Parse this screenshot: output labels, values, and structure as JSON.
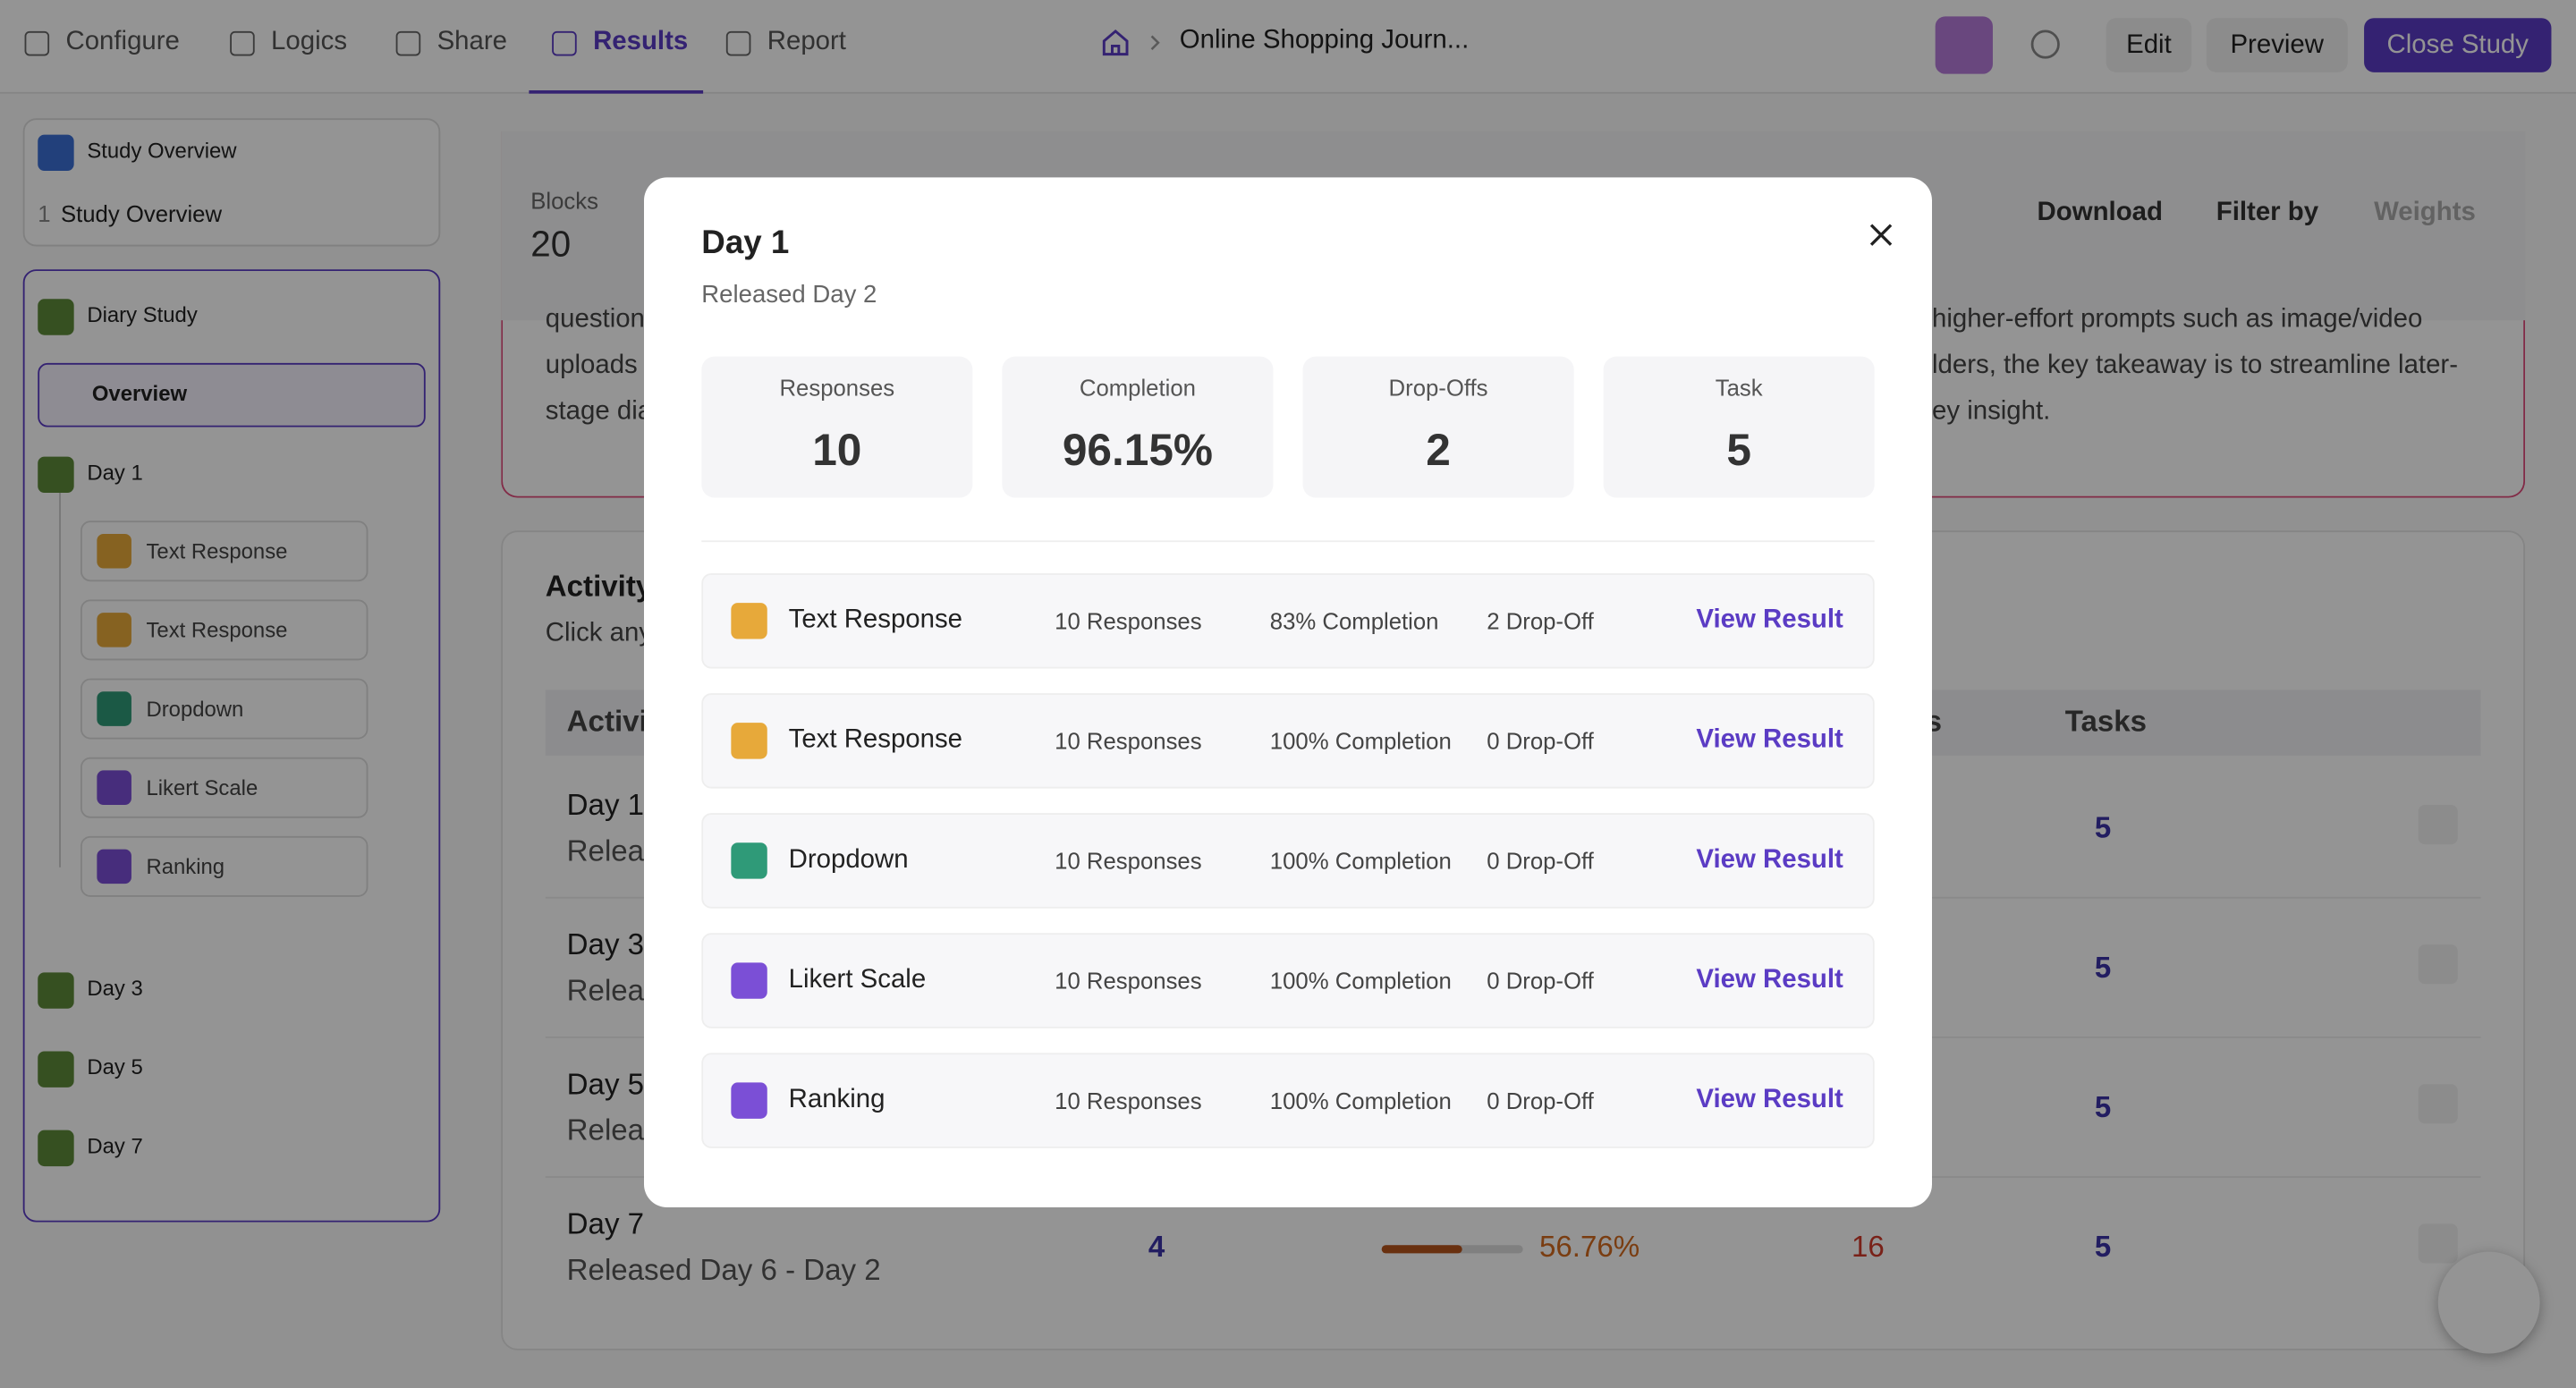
{
  "nav": {
    "tabs": [
      "Configure",
      "Logics",
      "Share",
      "Results",
      "Report"
    ],
    "breadcrumb": "Online Shopping Journ...",
    "buttons": [
      "Edit",
      "Preview",
      "Close Study"
    ]
  },
  "sidebar": {
    "overview": {
      "title": "Study Overview",
      "number": "1",
      "item": "Study Overview"
    },
    "diary": {
      "title": "Diary Study",
      "overview": "Overview",
      "day": "Day 1",
      "children": [
        "Text Response",
        "Text Response",
        "Dropdown",
        "Likert Scale",
        "Ranking"
      ],
      "other_days": [
        "Day 3",
        "Day 5",
        "Day 7"
      ]
    }
  },
  "summary": {
    "blocks_label": "Blocks",
    "blocks_value": "20",
    "buttons": [
      "Download",
      "Filter by",
      "Weights"
    ],
    "text_left": [
      "question",
      "uploads",
      "stage dia"
    ],
    "text_right": [
      "higher-effort prompts such as image/video",
      "lders, the key takeaway is to streamline later-",
      "ey insight."
    ]
  },
  "activity": {
    "title": "Activity",
    "subtitle": "Click any",
    "headers": [
      "Activi",
      "s",
      "Tasks"
    ],
    "rows": [
      {
        "name": "Day 1",
        "sub": "Relea",
        "tasks": "5"
      },
      {
        "name": "Day 3",
        "sub": "Relea",
        "tasks": "5"
      },
      {
        "name": "Day 5",
        "sub": "Relea",
        "tasks": "5"
      },
      {
        "name": "Day 7",
        "sub": "Released Day 6 - Day 2",
        "count": "4",
        "completion": "56.76%",
        "dropoffs": "16",
        "tasks": "5"
      }
    ]
  },
  "modal": {
    "title": "Day 1",
    "subtitle": "Released Day 2",
    "stats": [
      {
        "label": "Responses",
        "value": "10"
      },
      {
        "label": "Completion",
        "value": "96.15%"
      },
      {
        "label": "Drop-Offs",
        "value": "2"
      },
      {
        "label": "Task",
        "value": "5"
      }
    ],
    "items": [
      {
        "name": "Text Response",
        "responses": "10 Responses",
        "completion": "83% Completion",
        "dropoff": "2 Drop-Off",
        "action": "View Result"
      },
      {
        "name": "Text Response",
        "responses": "10 Responses",
        "completion": "100% Completion",
        "dropoff": "0 Drop-Off",
        "action": "View Result"
      },
      {
        "name": "Dropdown",
        "responses": "10 Responses",
        "completion": "100% Completion",
        "dropoff": "0 Drop-Off",
        "action": "View Result"
      },
      {
        "name": "Likert Scale",
        "responses": "10 Responses",
        "completion": "100% Completion",
        "dropoff": "0 Drop-Off",
        "action": "View Result"
      },
      {
        "name": "Ranking",
        "responses": "10 Responses",
        "completion": "100% Completion",
        "dropoff": "0 Drop-Off",
        "action": "View Result"
      }
    ]
  }
}
